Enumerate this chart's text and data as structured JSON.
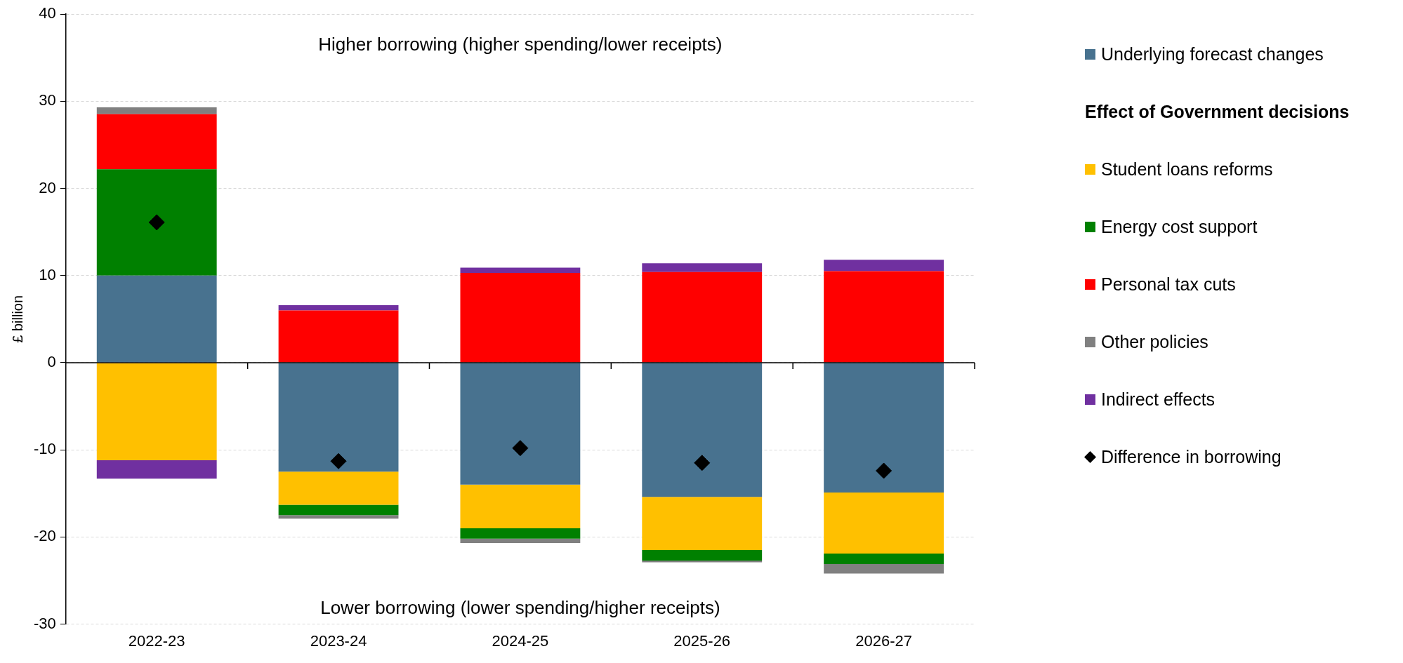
{
  "chart_data": {
    "type": "bar",
    "stacked": true,
    "ylabel": "£ billion",
    "legend_title": "Effect of Government decisions",
    "categories": [
      "2022-23",
      "2023-24",
      "2024-25",
      "2025-26",
      "2026-27"
    ],
    "series": [
      {
        "name": "Underlying forecast changes",
        "color": "#48728f",
        "values": [
          10,
          -12.5,
          -14.0,
          -15.4,
          -14.9
        ]
      },
      {
        "name": "Student loans reforms",
        "color": "#ffc000",
        "values": [
          -11.2,
          -3.8,
          -5.0,
          -6.1,
          -7.0
        ]
      },
      {
        "name": "Energy cost support",
        "color": "#008000",
        "values": [
          12.2,
          -1.2,
          -1.2,
          -1.2,
          -1.2
        ]
      },
      {
        "name": "Personal tax cuts",
        "color": "#ff0000",
        "values": [
          6.3,
          6.0,
          10.3,
          10.4,
          10.5
        ]
      },
      {
        "name": "Other policies",
        "color": "#808080",
        "values": [
          0.8,
          -0.4,
          -0.5,
          -0.2,
          -1.1
        ]
      },
      {
        "name": "Indirect effects",
        "color": "#7030a0",
        "values": [
          -2.1,
          0.6,
          0.6,
          1.0,
          1.3
        ]
      },
      {
        "name": "Difference in borrowing",
        "type": "scatter",
        "marker": "diamond",
        "color": "#000000",
        "x": [
          "2022-23",
          "2023-24",
          "2024-25",
          "2025-26",
          "2026-27"
        ],
        "values": [
          16.1,
          -11.3,
          -9.8,
          -11.5,
          -12.4
        ]
      }
    ],
    "ylim": [
      -30,
      40
    ],
    "yticks": [
      -30,
      -20,
      -10,
      0,
      10,
      20,
      30,
      40
    ],
    "grid": "y",
    "legend": "right",
    "annotations": [
      "Higher borrowing (higher spending/lower receipts)",
      "Lower borrowing (lower spending/higher receipts)"
    ]
  }
}
